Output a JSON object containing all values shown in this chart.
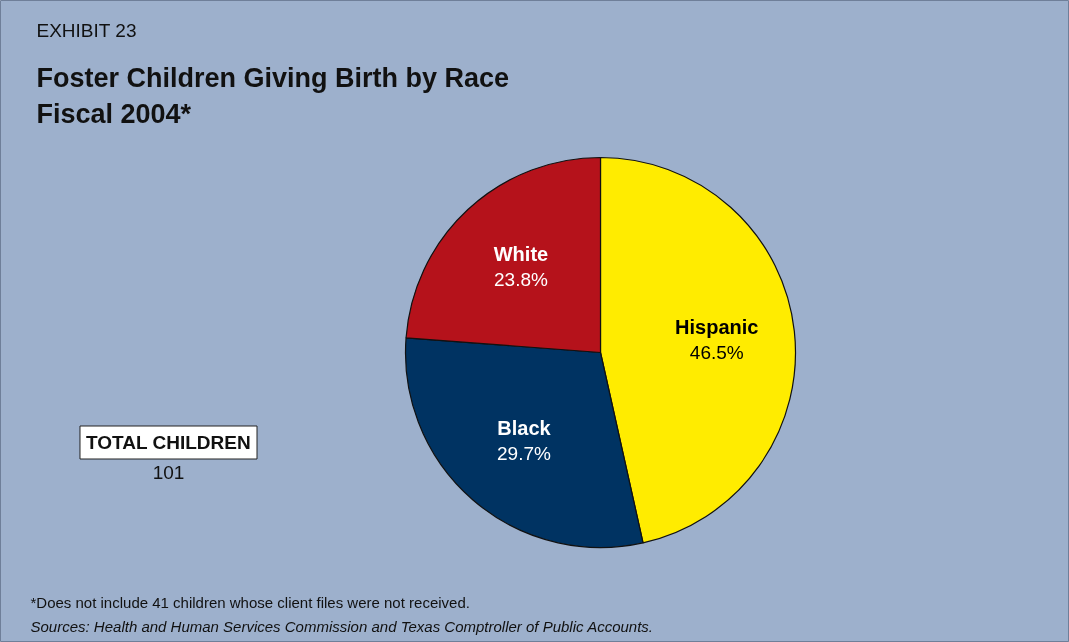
{
  "chart_data": {
    "type": "pie",
    "title": "Foster Children Giving Birth by Race\nFiscal 2004*",
    "categories": [
      "Hispanic",
      "Black",
      "White"
    ],
    "values": [
      46.5,
      29.7,
      23.8
    ],
    "colors": [
      "#ffec00",
      "#003362",
      "#b5121b"
    ],
    "value_labels": [
      "46.5%",
      "29.7%",
      "23.8%"
    ],
    "annotations": [
      "EXHIBIT 23",
      "TOTAL CHILDREN",
      "101",
      "*Does not include 41 children whose client files were not received.",
      "Sources: Health and Human Services Commission and Texas Comptroller of Public Accounts."
    ]
  }
}
